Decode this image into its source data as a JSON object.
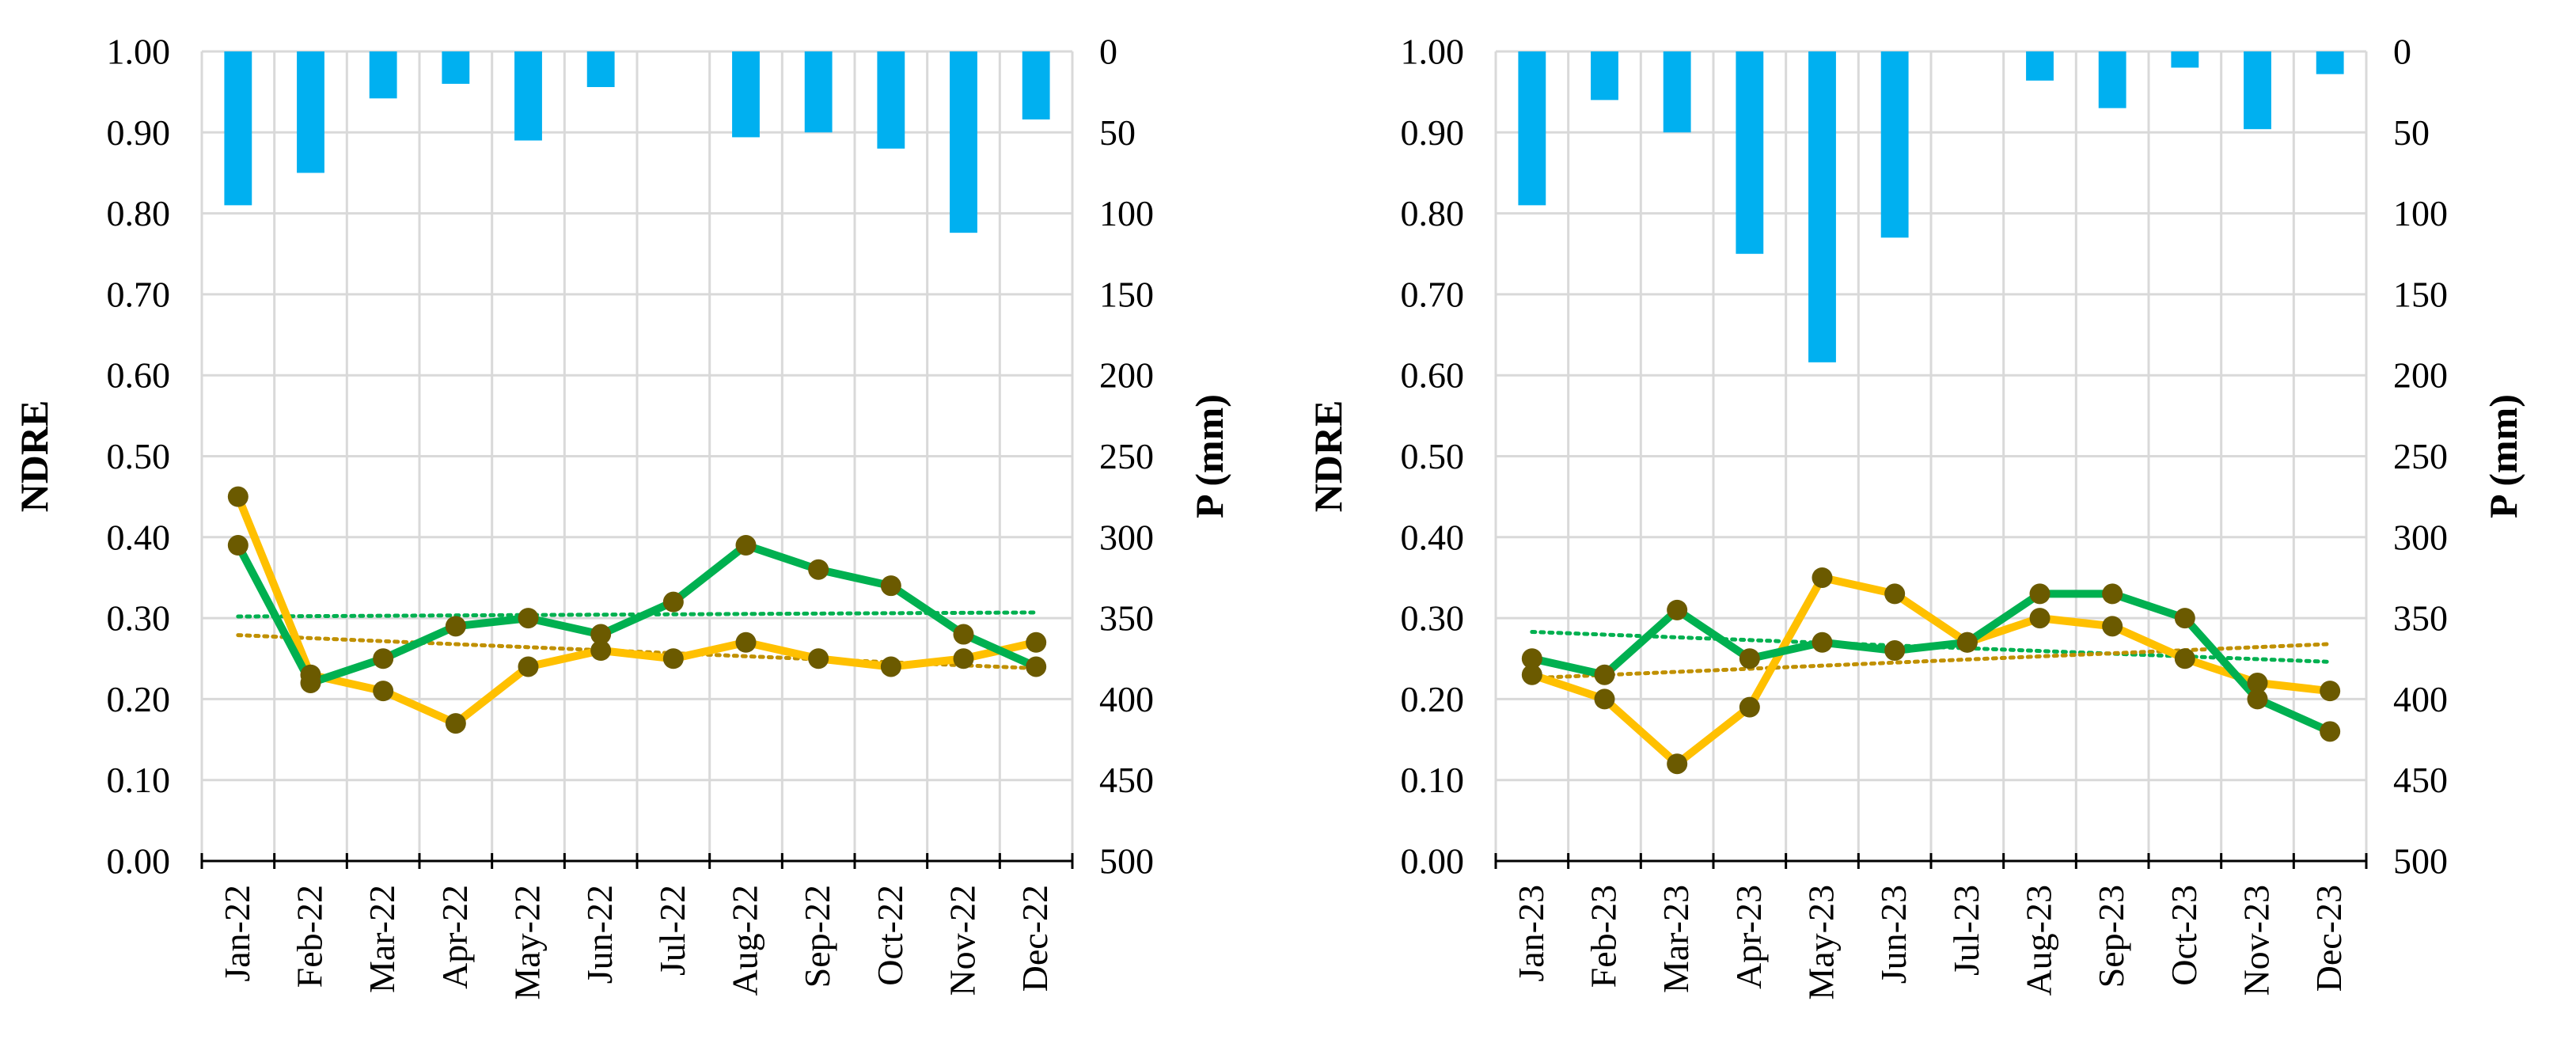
{
  "colors": {
    "precip_bar": "#00b0f0",
    "ndre_green": "#00b050",
    "ndre_yellow": "#ffc000",
    "marker": "#6b5a00",
    "trend_green": "#00b050",
    "trend_yellow": "#c09000",
    "grid": "#d9d9d9",
    "axis": "#000000"
  },
  "chart_data": [
    {
      "type": "line+bar",
      "panel": "2022",
      "categories": [
        "Jan-22",
        "Feb-22",
        "Mar-22",
        "Apr-22",
        "May-22",
        "Jun-22",
        "Jul-22",
        "Aug-22",
        "Sep-22",
        "Oct-22",
        "Nov-22",
        "Dec-22"
      ],
      "ylabel": "NDRE",
      "ylabel_right": "P (mm)",
      "ylim": [
        0,
        1
      ],
      "yticks": [
        "0.00",
        "0.10",
        "0.20",
        "0.30",
        "0.40",
        "0.50",
        "0.60",
        "0.70",
        "0.80",
        "0.90",
        "1.00"
      ],
      "ylim_right": [
        0,
        500
      ],
      "yticks_right": [
        "0",
        "50",
        "100",
        "150",
        "200",
        "250",
        "300",
        "350",
        "400",
        "450",
        "500"
      ],
      "right_axis_inverted": true,
      "grid": true,
      "series": [
        {
          "name": "NDRE (green)",
          "kind": "line",
          "color": "#00b050",
          "values": [
            0.39,
            0.22,
            0.25,
            0.29,
            0.3,
            0.28,
            0.32,
            0.39,
            0.36,
            0.34,
            0.28,
            0.24
          ]
        },
        {
          "name": "NDRE (yellow)",
          "kind": "line",
          "color": "#ffc000",
          "values": [
            0.45,
            0.23,
            0.21,
            0.17,
            0.24,
            0.26,
            0.25,
            0.27,
            0.25,
            0.24,
            0.25,
            0.27
          ]
        },
        {
          "name": "P (mm)",
          "kind": "bar",
          "axis": "right",
          "color": "#00b0f0",
          "values": [
            95,
            75,
            29,
            20,
            55,
            22,
            0,
            53,
            50,
            60,
            112,
            42
          ]
        }
      ],
      "trendlines": [
        {
          "series": "NDRE (green)",
          "style": "dotted",
          "start": 0.302,
          "end": 0.307
        },
        {
          "series": "NDRE (yellow)",
          "style": "dotted",
          "start": 0.279,
          "end": 0.238
        }
      ]
    },
    {
      "type": "line+bar",
      "panel": "2023",
      "categories": [
        "Jan-23",
        "Feb-23",
        "Mar-23",
        "Apr-23",
        "May-23",
        "Jun-23",
        "Jul-23",
        "Aug-23",
        "Sep-23",
        "Oct-23",
        "Nov-23",
        "Dec-23"
      ],
      "ylabel": "NDRE",
      "ylabel_right": "P (mm)",
      "ylim": [
        0,
        1
      ],
      "yticks": [
        "0.00",
        "0.10",
        "0.20",
        "0.30",
        "0.40",
        "0.50",
        "0.60",
        "0.70",
        "0.80",
        "0.90",
        "1.00"
      ],
      "ylim_right": [
        0,
        500
      ],
      "yticks_right": [
        "0",
        "50",
        "100",
        "150",
        "200",
        "250",
        "300",
        "350",
        "400",
        "450",
        "500"
      ],
      "right_axis_inverted": true,
      "grid": true,
      "series": [
        {
          "name": "NDRE (green)",
          "kind": "line",
          "color": "#00b050",
          "values": [
            0.25,
            0.23,
            0.31,
            0.25,
            0.27,
            0.26,
            0.27,
            0.33,
            0.33,
            0.3,
            0.2,
            0.16
          ]
        },
        {
          "name": "NDRE (yellow)",
          "kind": "line",
          "color": "#ffc000",
          "values": [
            0.23,
            0.2,
            0.12,
            0.19,
            0.35,
            0.33,
            0.27,
            0.3,
            0.29,
            0.25,
            0.22,
            0.21
          ]
        },
        {
          "name": "P (mm)",
          "kind": "bar",
          "axis": "right",
          "color": "#00b0f0",
          "values": [
            95,
            30,
            50,
            125,
            192,
            115,
            0,
            18,
            35,
            10,
            48,
            14
          ]
        }
      ],
      "trendlines": [
        {
          "series": "NDRE (green)",
          "style": "dotted",
          "start": 0.283,
          "end": 0.246
        },
        {
          "series": "NDRE (yellow)",
          "style": "dotted",
          "start": 0.226,
          "end": 0.268
        }
      ]
    }
  ]
}
